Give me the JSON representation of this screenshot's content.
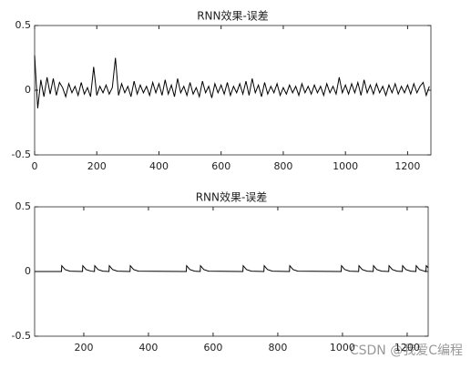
{
  "chart_data": [
    {
      "type": "line",
      "title": "RNN效果-误差",
      "color": "#000000",
      "x": [
        0,
        10,
        20,
        30,
        40,
        50,
        60,
        70,
        80,
        90,
        100,
        110,
        120,
        130,
        140,
        150,
        160,
        170,
        180,
        190,
        200,
        210,
        220,
        230,
        240,
        250,
        260,
        270,
        280,
        290,
        300,
        310,
        320,
        330,
        340,
        350,
        360,
        370,
        380,
        390,
        400,
        410,
        420,
        430,
        440,
        450,
        460,
        470,
        480,
        490,
        500,
        510,
        520,
        530,
        540,
        550,
        560,
        570,
        580,
        590,
        600,
        610,
        620,
        630,
        640,
        650,
        660,
        670,
        680,
        690,
        700,
        710,
        720,
        730,
        740,
        750,
        760,
        770,
        780,
        790,
        800,
        810,
        820,
        830,
        840,
        850,
        860,
        870,
        880,
        890,
        900,
        910,
        920,
        930,
        940,
        950,
        960,
        970,
        980,
        990,
        1000,
        1010,
        1020,
        1030,
        1040,
        1050,
        1060,
        1070,
        1080,
        1090,
        1100,
        1110,
        1120,
        1130,
        1140,
        1150,
        1160,
        1170,
        1180,
        1190,
        1200,
        1210,
        1220,
        1230,
        1240,
        1250,
        1260,
        1270
      ],
      "values": [
        0.27,
        -0.14,
        0.08,
        -0.05,
        0.1,
        -0.03,
        0.09,
        -0.04,
        0.06,
        0.02,
        -0.05,
        0.05,
        -0.02,
        0.03,
        -0.04,
        0.06,
        -0.03,
        0.02,
        -0.05,
        0.18,
        -0.04,
        0.03,
        -0.02,
        0.04,
        -0.03,
        0.02,
        0.25,
        -0.04,
        0.05,
        -0.02,
        0.03,
        -0.05,
        0.07,
        -0.03,
        0.04,
        -0.02,
        0.03,
        -0.04,
        0.06,
        -0.02,
        0.05,
        -0.04,
        0.08,
        -0.03,
        0.04,
        -0.05,
        0.09,
        -0.02,
        0.03,
        -0.04,
        0.06,
        -0.03,
        0.02,
        -0.05,
        0.07,
        -0.02,
        0.03,
        -0.06,
        0.05,
        -0.02,
        0.04,
        -0.03,
        0.06,
        -0.04,
        0.03,
        -0.02,
        0.05,
        -0.03,
        0.07,
        -0.04,
        0.09,
        -0.02,
        0.04,
        -0.05,
        0.06,
        -0.03,
        0.03,
        -0.02,
        0.05,
        -0.04,
        0.02,
        -0.03,
        0.04,
        -0.02,
        0.03,
        -0.04,
        0.05,
        -0.02,
        0.03,
        -0.03,
        0.04,
        -0.02,
        0.03,
        -0.04,
        0.05,
        -0.02,
        0.03,
        -0.03,
        0.1,
        -0.02,
        0.04,
        -0.03,
        0.05,
        -0.02,
        0.06,
        -0.04,
        0.08,
        -0.02,
        0.04,
        -0.03,
        0.05,
        -0.02,
        0.03,
        -0.04,
        0.04,
        -0.02,
        0.05,
        -0.03,
        0.03,
        -0.02,
        0.04,
        -0.03,
        0.05,
        -0.02,
        0.03,
        0.06,
        -0.04,
        0.03
      ],
      "xlim": [
        0,
        1275
      ],
      "xticks": [
        0,
        200,
        400,
        600,
        800,
        1000,
        1200
      ],
      "ylim": [
        -0.5,
        0.5
      ],
      "yticks": [
        -0.5,
        0,
        0.5
      ]
    },
    {
      "type": "line",
      "title": "RNN效果-误差",
      "color": "#000000",
      "x": [
        48,
        131,
        132,
        142,
        157,
        196,
        197,
        207,
        222,
        233,
        234,
        244,
        259,
        278,
        279,
        289,
        304,
        343,
        344,
        354,
        369,
        517,
        518,
        528,
        543,
        560,
        561,
        571,
        586,
        692,
        693,
        703,
        718,
        757,
        758,
        768,
        783,
        836,
        837,
        847,
        862,
        996,
        997,
        1007,
        1022,
        1050,
        1051,
        1061,
        1076,
        1095,
        1096,
        1106,
        1121,
        1143,
        1144,
        1154,
        1169,
        1185,
        1186,
        1196,
        1211,
        1227,
        1228,
        1238,
        1253,
        1258,
        1259,
        1265
      ],
      "values": [
        0,
        0,
        0.045,
        0.015,
        0.003,
        0,
        0.045,
        0.015,
        0.003,
        0,
        0.045,
        0.015,
        0.003,
        0,
        0.045,
        0.015,
        0.003,
        0,
        0.045,
        0.015,
        0.003,
        0,
        0.045,
        0.015,
        0.003,
        0,
        0.045,
        0.015,
        0.003,
        0,
        0.045,
        0.015,
        0.003,
        0,
        0.045,
        0.015,
        0.003,
        0,
        0.045,
        0.015,
        0.003,
        0,
        0.045,
        0.015,
        0.003,
        0,
        0.045,
        0.015,
        0.003,
        0,
        0.045,
        0.015,
        0.003,
        0,
        0.045,
        0.015,
        0.003,
        0,
        0.045,
        0.015,
        0.003,
        0,
        0.045,
        0.015,
        0.003,
        0,
        0.045,
        0.03
      ],
      "xlim": [
        48,
        1265
      ],
      "xticks": [
        200,
        400,
        600,
        800,
        1000,
        1200
      ],
      "ylim": [
        -0.5,
        0.5
      ],
      "yticks": [
        -0.5,
        0,
        0.5
      ]
    }
  ],
  "watermark": "CSDN @我爱C编程"
}
